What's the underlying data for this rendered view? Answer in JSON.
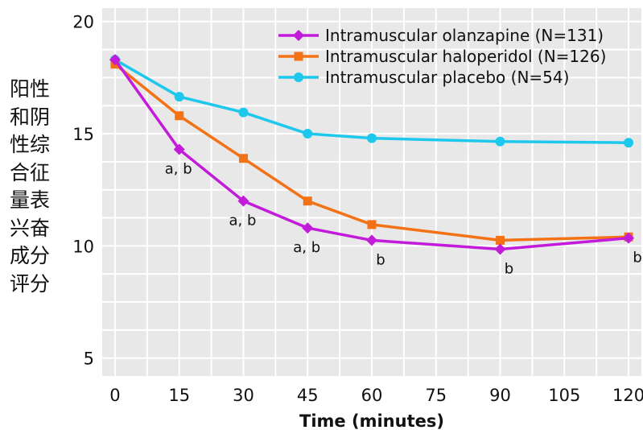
{
  "chart_data": {
    "type": "line",
    "title": "",
    "xlabel": "Time (minutes)",
    "ylabel": "阳性\n和阴\n性综\n合征\n量表\n兴奋\n成分\n评分",
    "xlim": [
      -3,
      123
    ],
    "ylim": [
      4.2,
      20.6
    ],
    "x_ticks": [
      0,
      15,
      30,
      45,
      60,
      75,
      90,
      105,
      120
    ],
    "y_ticks": [
      5,
      10,
      15,
      20
    ],
    "grid": true,
    "legend_position": "top-right",
    "series": [
      {
        "name": "Intramuscular olanzapine (N=131)",
        "color": "#c21bd9",
        "marker": "diamond",
        "x": [
          0,
          15,
          30,
          45,
          60,
          90,
          120
        ],
        "y": [
          18.3,
          14.3,
          12.0,
          10.8,
          10.25,
          9.85,
          10.35
        ]
      },
      {
        "name": "Intramuscular haloperidol (N=126)",
        "color": "#f47216",
        "marker": "square",
        "x": [
          0,
          15,
          30,
          45,
          60,
          90,
          120
        ],
        "y": [
          18.1,
          15.8,
          13.9,
          12.0,
          10.95,
          10.25,
          10.4
        ]
      },
      {
        "name": "Intramuscular placebo (N=54)",
        "color": "#1ec8ec",
        "marker": "circle",
        "x": [
          0,
          15,
          30,
          45,
          60,
          90,
          120
        ],
        "y": [
          18.3,
          16.65,
          15.95,
          15.0,
          14.8,
          14.65,
          14.6
        ]
      }
    ],
    "annotations": [
      {
        "text": "a, b",
        "x": 15,
        "y": 14.3
      },
      {
        "text": "a, b",
        "x": 30,
        "y": 12.0
      },
      {
        "text": "a, b",
        "x": 45,
        "y": 10.8
      },
      {
        "text": "b",
        "x": 60,
        "y": 10.25
      },
      {
        "text": "b",
        "x": 90,
        "y": 9.85
      },
      {
        "text": "b",
        "x": 120,
        "y": 10.35
      }
    ]
  }
}
